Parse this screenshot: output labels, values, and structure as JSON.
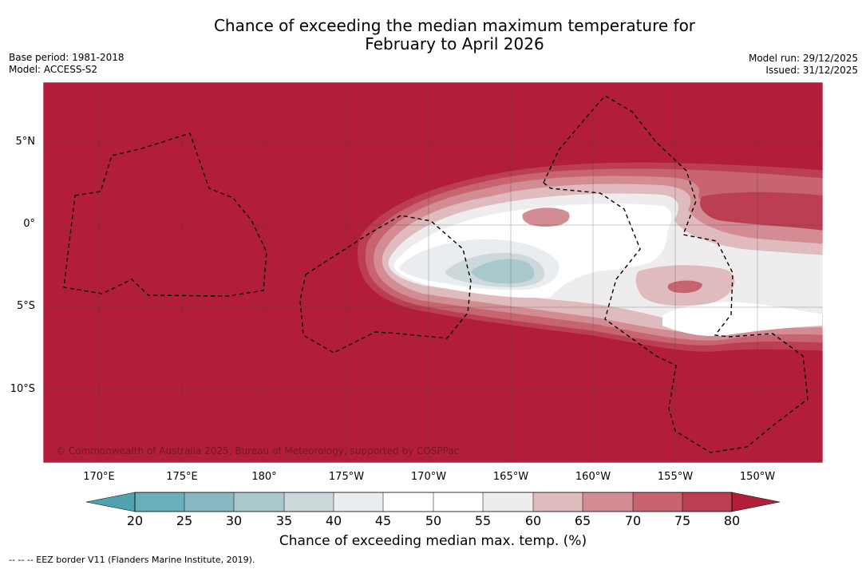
{
  "title": {
    "line1": "Chance of exceeding the median maximum temperature for",
    "line2": "February to April 2026"
  },
  "meta_left": {
    "base_period": "Base period: 1981-2018",
    "model": "Model: ACCESS-S2"
  },
  "meta_right": {
    "model_run": "Model run: 29/12/2025",
    "issued": "Issued: 31/12/2025"
  },
  "axes": {
    "lon_labels": [
      "170°E",
      "175°E",
      "180°",
      "175°W",
      "170°W",
      "165°W",
      "160°W",
      "155°W",
      "150°W"
    ],
    "lat_labels": [
      "5°N",
      "0°",
      "5°S",
      "10°S"
    ]
  },
  "colorbar": {
    "ticks": [
      "20",
      "25",
      "30",
      "35",
      "40",
      "45",
      "50",
      "55",
      "60",
      "65",
      "70",
      "75",
      "80"
    ],
    "title": "Chance of exceeding median max. temp. (%)"
  },
  "copyright": "© Commonwealth of Australia 2025, Bureau of Meteorology, supported by COSPPac",
  "footnote": "--  --  -- EEZ border V11 (Flanders Marine Institute, 2019).",
  "colors": {
    "high": "#b21e3a",
    "bin_75_80": "#bc3e52",
    "bin_70_75": "#c76470",
    "bin_65_70": "#d38c93",
    "bin_60_65": "#e0bbbe",
    "bin_55_60": "#eeeced",
    "bin_45_55": "#ffffff",
    "bin_40_45": "#e9edef",
    "bin_35_40": "#cdd8da",
    "bin_30_35": "#a9c8cc",
    "bin_25_30": "#88b8c2",
    "bin_20_25": "#6aaebb",
    "low": "#4fa3b1"
  }
}
